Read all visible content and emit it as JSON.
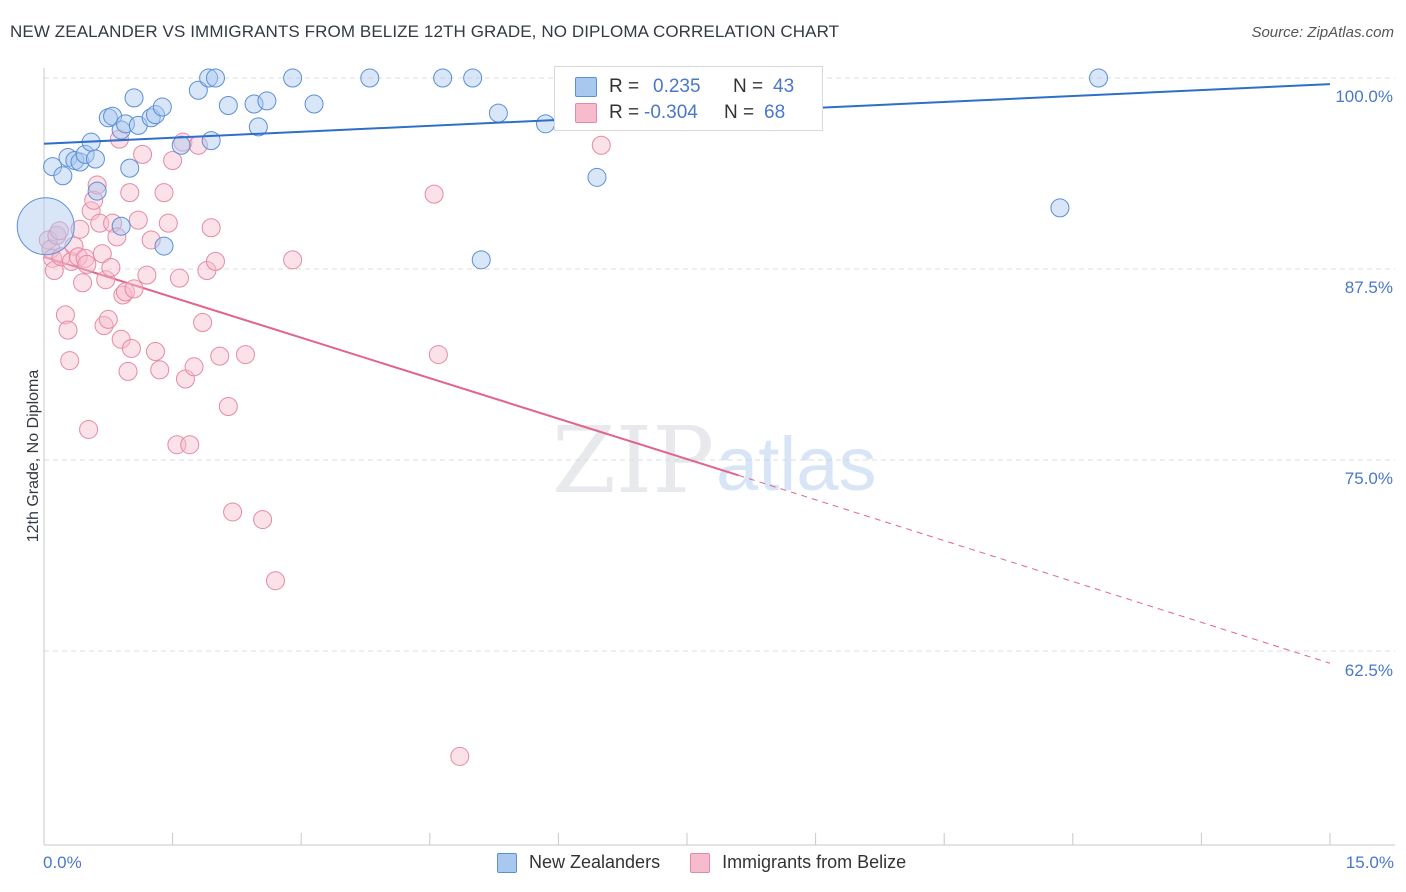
{
  "header": {
    "title": "NEW ZEALANDER VS IMMIGRANTS FROM BELIZE 12TH GRADE, NO DIPLOMA CORRELATION CHART",
    "source": "Source: ZipAtlas.com"
  },
  "watermark": {
    "zip": "ZIP",
    "atlas": "atlas"
  },
  "legend": {
    "rows": [
      {
        "r_label": "R =",
        "r_value": "0.235",
        "n_label": "N =",
        "n_value": "43"
      },
      {
        "r_label": "R =",
        "r_value": "-0.304",
        "n_label": "N =",
        "n_value": "68"
      }
    ]
  },
  "colors": {
    "blue_fill": "#a9c8f0",
    "blue_stroke": "#5b8fd6",
    "blue_line": "#2f6fca",
    "pink_fill": "#f6bccd",
    "pink_stroke": "#e58aa6",
    "pink_line": "#e0648c",
    "tick_text": "#4a78c8"
  },
  "chart_data": {
    "type": "scatter",
    "title": "NEW ZEALANDER VS IMMIGRANTS FROM BELIZE 12TH GRADE, NO DIPLOMA CORRELATION CHART",
    "xlabel": "",
    "ylabel": "12th Grade, No Diploma",
    "xlim": [
      0,
      15
    ],
    "ylim": [
      50,
      102
    ],
    "x_tick_labels": [
      "0.0%",
      "15.0%"
    ],
    "y_ticks": [
      62.5,
      75.0,
      87.5,
      100.0
    ],
    "y_tick_labels": [
      "62.5%",
      "75.0%",
      "87.5%",
      "100.0%"
    ],
    "grid": "horizontal dashed",
    "legend_position": "top-center",
    "series": [
      {
        "name": "New Zealanders",
        "r": 0.235,
        "n": 43,
        "points": [
          [
            0.02,
            90.3
          ],
          [
            0.1,
            94.2
          ],
          [
            0.22,
            93.6
          ],
          [
            0.28,
            94.8
          ],
          [
            0.36,
            94.6
          ],
          [
            0.42,
            94.5
          ],
          [
            0.48,
            95.0
          ],
          [
            0.55,
            95.8
          ],
          [
            0.6,
            94.7
          ],
          [
            0.62,
            92.6
          ],
          [
            0.75,
            97.4
          ],
          [
            0.8,
            97.5
          ],
          [
            0.9,
            96.6
          ],
          [
            0.95,
            97.0
          ],
          [
            1.0,
            94.1
          ],
          [
            1.05,
            98.7
          ],
          [
            1.1,
            96.9
          ],
          [
            1.25,
            97.4
          ],
          [
            1.3,
            97.6
          ],
          [
            1.38,
            98.1
          ],
          [
            1.4,
            89.0
          ],
          [
            1.6,
            95.6
          ],
          [
            1.8,
            99.2
          ],
          [
            1.92,
            100.0
          ],
          [
            1.95,
            95.9
          ],
          [
            2.0,
            100.0
          ],
          [
            2.15,
            98.2
          ],
          [
            2.45,
            98.3
          ],
          [
            2.5,
            96.8
          ],
          [
            2.6,
            98.5
          ],
          [
            2.9,
            100.0
          ],
          [
            3.15,
            98.3
          ],
          [
            3.8,
            100.0
          ],
          [
            4.65,
            100.0
          ],
          [
            5.0,
            100.0
          ],
          [
            5.1,
            88.1
          ],
          [
            5.3,
            97.7
          ],
          [
            5.85,
            97.0
          ],
          [
            6.45,
            93.5
          ],
          [
            7.0,
            100.0
          ],
          [
            0.9,
            90.3
          ],
          [
            11.85,
            91.5
          ],
          [
            12.3,
            100.0
          ]
        ],
        "sizes": [
          38,
          12,
          12,
          12,
          12,
          12,
          12,
          12,
          12,
          12,
          12,
          12,
          12,
          12,
          12,
          12,
          12,
          12,
          12,
          12,
          12,
          12,
          12,
          12,
          12,
          12,
          12,
          12,
          12,
          12,
          12,
          12,
          12,
          12,
          12,
          12,
          12,
          12,
          12,
          12,
          12,
          12,
          12
        ],
        "trend": {
          "x": [
            0,
            15
          ],
          "y": [
            95.7,
            99.6
          ]
        }
      },
      {
        "name": "Immigrants from Belize",
        "r": -0.304,
        "n": 68,
        "points": [
          [
            0.05,
            89.4
          ],
          [
            0.08,
            88.8
          ],
          [
            0.1,
            88.2
          ],
          [
            0.12,
            87.4
          ],
          [
            0.15,
            89.7
          ],
          [
            0.18,
            90.0
          ],
          [
            0.2,
            88.3
          ],
          [
            0.25,
            84.5
          ],
          [
            0.28,
            83.5
          ],
          [
            0.3,
            81.5
          ],
          [
            0.32,
            88.0
          ],
          [
            0.35,
            89.0
          ],
          [
            0.4,
            88.3
          ],
          [
            0.45,
            86.6
          ],
          [
            0.48,
            88.2
          ],
          [
            0.5,
            87.8
          ],
          [
            0.52,
            77.0
          ],
          [
            0.55,
            91.3
          ],
          [
            0.58,
            92.0
          ],
          [
            0.62,
            93.0
          ],
          [
            0.65,
            90.5
          ],
          [
            0.68,
            88.5
          ],
          [
            0.7,
            83.8
          ],
          [
            0.72,
            86.8
          ],
          [
            0.75,
            84.2
          ],
          [
            0.78,
            87.6
          ],
          [
            0.8,
            90.5
          ],
          [
            0.85,
            89.6
          ],
          [
            0.88,
            96.0
          ],
          [
            0.9,
            82.9
          ],
          [
            0.92,
            85.8
          ],
          [
            0.95,
            86.0
          ],
          [
            0.98,
            80.8
          ],
          [
            1.0,
            92.5
          ],
          [
            1.02,
            82.3
          ],
          [
            1.05,
            86.2
          ],
          [
            1.1,
            90.7
          ],
          [
            1.15,
            95.0
          ],
          [
            1.2,
            87.1
          ],
          [
            1.25,
            89.4
          ],
          [
            1.3,
            82.1
          ],
          [
            1.35,
            80.9
          ],
          [
            1.4,
            92.5
          ],
          [
            1.45,
            90.5
          ],
          [
            1.5,
            94.6
          ],
          [
            1.55,
            76.0
          ],
          [
            1.58,
            86.9
          ],
          [
            1.62,
            95.8
          ],
          [
            1.65,
            80.3
          ],
          [
            1.7,
            76.0
          ],
          [
            1.75,
            81.1
          ],
          [
            1.8,
            95.6
          ],
          [
            1.85,
            84.0
          ],
          [
            1.9,
            87.4
          ],
          [
            1.95,
            90.2
          ],
          [
            2.0,
            88.0
          ],
          [
            2.05,
            81.8
          ],
          [
            2.15,
            78.5
          ],
          [
            2.2,
            71.6
          ],
          [
            2.35,
            81.9
          ],
          [
            2.55,
            71.1
          ],
          [
            2.7,
            67.1
          ],
          [
            2.9,
            88.1
          ],
          [
            4.55,
            92.4
          ],
          [
            4.6,
            81.9
          ],
          [
            4.85,
            55.6
          ],
          [
            6.5,
            95.6
          ],
          [
            0.42,
            90.1
          ]
        ],
        "trend_solid": {
          "x": [
            0,
            8.1
          ],
          "y": [
            88.3,
            74.0
          ]
        },
        "trend_dashed": {
          "x": [
            8.1,
            15
          ],
          "y": [
            74.0,
            61.7
          ]
        }
      }
    ]
  },
  "bottom_legend": {
    "items": [
      {
        "label": "New Zealanders"
      },
      {
        "label": "Immigrants from Belize"
      }
    ]
  }
}
